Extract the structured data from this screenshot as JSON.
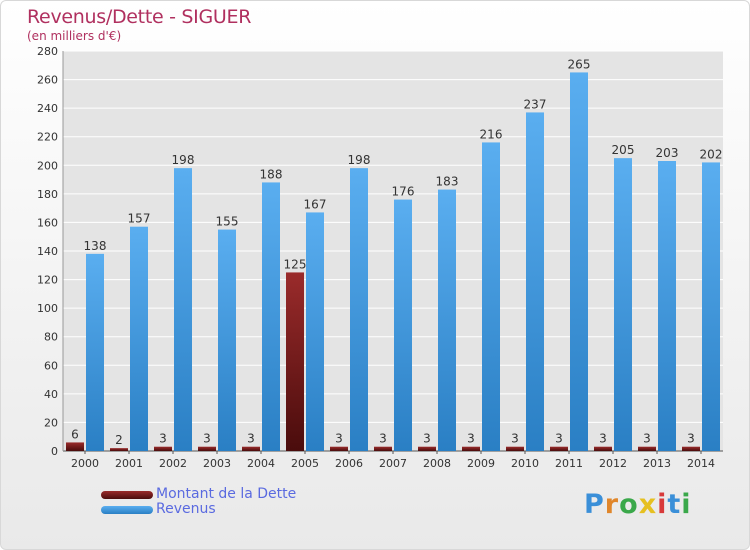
{
  "chart_data": {
    "type": "bar",
    "title": "Revenus/Dette - SIGUER",
    "subtitle": "(en milliers d'€)",
    "categories": [
      "2000",
      "2001",
      "2002",
      "2003",
      "2004",
      "2005",
      "2006",
      "2007",
      "2008",
      "2009",
      "2010",
      "2011",
      "2012",
      "2013",
      "2014"
    ],
    "series": [
      {
        "name": "Montant de la Dette",
        "color": "#7a1f1f",
        "values": [
          6,
          2,
          3,
          3,
          3,
          125,
          3,
          3,
          3,
          3,
          3,
          3,
          3,
          3,
          3
        ]
      },
      {
        "name": "Revenus",
        "color": "#3d92d6",
        "values": [
          138,
          157,
          198,
          155,
          188,
          167,
          198,
          176,
          183,
          216,
          237,
          265,
          205,
          203,
          202
        ]
      }
    ],
    "ylim": [
      0,
      280
    ],
    "yticks": [
      0,
      20,
      40,
      60,
      80,
      100,
      120,
      140,
      160,
      180,
      200,
      220,
      240,
      260,
      280
    ],
    "grid": true,
    "legend_position": "bottom-left"
  },
  "logo": {
    "letters": [
      {
        "ch": "P",
        "color": "#3a8fd8"
      },
      {
        "ch": "r",
        "color": "#e0862a"
      },
      {
        "ch": "o",
        "color": "#3aa84a"
      },
      {
        "ch": "x",
        "color": "#e6c020"
      },
      {
        "ch": "i",
        "color": "#d83a3a"
      },
      {
        "ch": "t",
        "color": "#3a8fd8"
      },
      {
        "ch": "i",
        "color": "#3aa84a"
      }
    ]
  }
}
